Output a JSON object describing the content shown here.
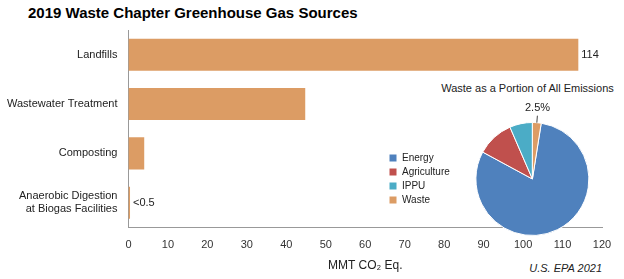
{
  "chart_data": [
    {
      "type": "bar",
      "title": "2019 Waste Chapter Greenhouse Gas Sources",
      "orientation": "horizontal",
      "categories": [
        "Landfills",
        "Wastewater Treatment",
        "Composting",
        "Anaerobic Digestion at Biogas Facilities"
      ],
      "values": [
        114,
        44.8,
        4,
        0.4
      ],
      "value_labels": [
        "114",
        null,
        null,
        "<0.5"
      ],
      "data_labels": true,
      "color": "#dc9c64",
      "xlabel": "MMT CO₂ Eq.",
      "xlim": [
        0,
        120
      ],
      "xticks": [
        0,
        10,
        20,
        30,
        40,
        50,
        60,
        70,
        80,
        90,
        100,
        110,
        120
      ],
      "grid": false,
      "annotations": [
        "U.S. EPA 2021"
      ]
    },
    {
      "type": "pie",
      "title": "Waste as a Portion of All Emissions",
      "categories": [
        "Energy",
        "Agriculture",
        "IPPU",
        "Waste"
      ],
      "values": [
        80.4,
        10.6,
        6.5,
        2.5
      ],
      "value_labels": [
        null,
        null,
        null,
        "2.5%"
      ],
      "data_labels": true,
      "colors": [
        "#4f81bd",
        "#c0504d",
        "#4bacc6",
        "#dc9c64"
      ],
      "legend": "left"
    }
  ]
}
